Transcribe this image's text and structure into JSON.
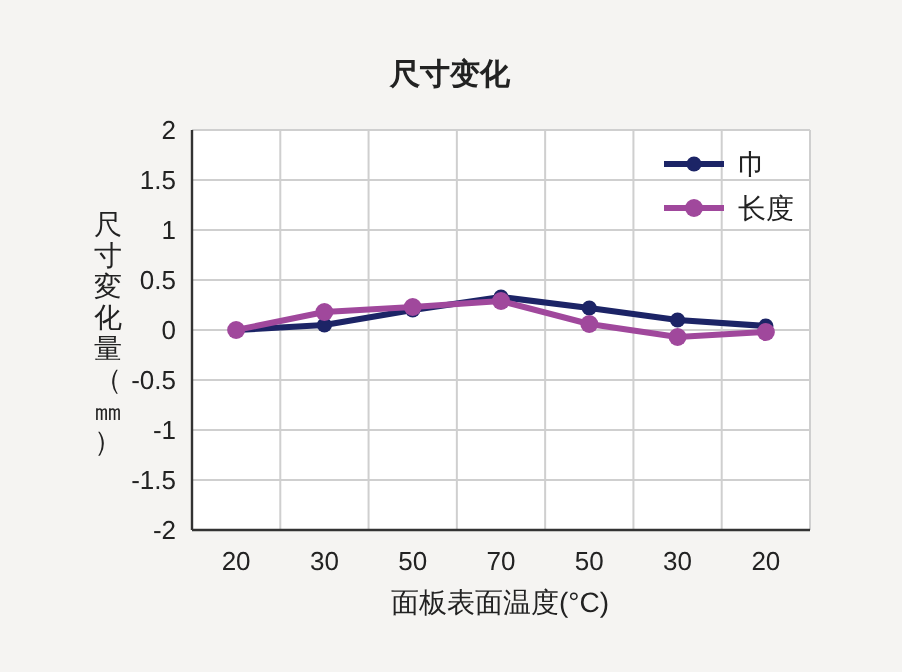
{
  "chart_data": {
    "type": "line",
    "title": "尺寸变化",
    "xlabel": "面板表面温度(°C)",
    "ylabel": "尺寸変化量（㎜）",
    "categories": [
      "20",
      "30",
      "50",
      "70",
      "50",
      "30",
      "20"
    ],
    "series": [
      {
        "name": "巾",
        "color": "#1c2466",
        "values": [
          0,
          0.05,
          0.2,
          0.33,
          0.22,
          0.1,
          0.04
        ]
      },
      {
        "name": "长度",
        "color": "#a0489c",
        "values": [
          0,
          0.18,
          0.23,
          0.29,
          0.06,
          -0.07,
          -0.02
        ]
      }
    ],
    "ylim": [
      -2,
      2
    ],
    "yticks": [
      -2,
      -1.5,
      -1,
      -0.5,
      0,
      0.5,
      1,
      1.5,
      2
    ],
    "grid": true,
    "legend": "top right",
    "marker": "circle",
    "line_style": "solid"
  }
}
